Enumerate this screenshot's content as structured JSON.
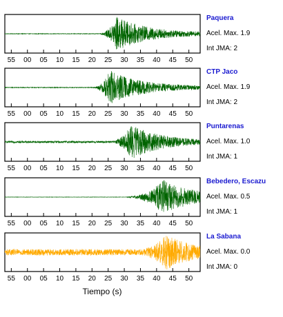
{
  "chart_data": {
    "type": "line",
    "x_axis": {
      "unit": "s",
      "title": "Tiempo (s)",
      "tick_labels": [
        "55",
        "00",
        "05",
        "10",
        "15",
        "20",
        "25",
        "30",
        "35",
        "40",
        "45",
        "50"
      ]
    },
    "stations": [
      {
        "name": "Paquera",
        "acel_label": "Acel. Max. 1.9",
        "int_label": "Int JMA: 2",
        "color": "#006400",
        "onset": 22,
        "peak": 27.5,
        "end": 52,
        "noise": 0.015
      },
      {
        "name": "CTP Jaco",
        "acel_label": "Acel. Max. 1.9",
        "int_label": "Int JMA: 2",
        "color": "#006400",
        "onset": 20,
        "peak": 25.5,
        "end": 52,
        "noise": 0.02
      },
      {
        "name": "Puntarenas",
        "acel_label": "Acel. Max. 1.0",
        "int_label": "Int JMA: 1",
        "color": "#006400",
        "onset": 25,
        "peak": 32,
        "end": 52,
        "noise": 0.06
      },
      {
        "name": "Bebedero, Escazu",
        "acel_label": "Acel. Max. 0.5",
        "int_label": "Int JMA: 1",
        "color": "#006400",
        "onset": 30,
        "peak": 42,
        "end": 52,
        "noise": 0.01
      },
      {
        "name": "La Sabana",
        "acel_label": "Acel. Max. 0.0",
        "int_label": "Int JMA: 0",
        "color": "#ffaa00",
        "onset": 30,
        "peak": 43,
        "end": 52,
        "noise": 0.18
      }
    ]
  }
}
